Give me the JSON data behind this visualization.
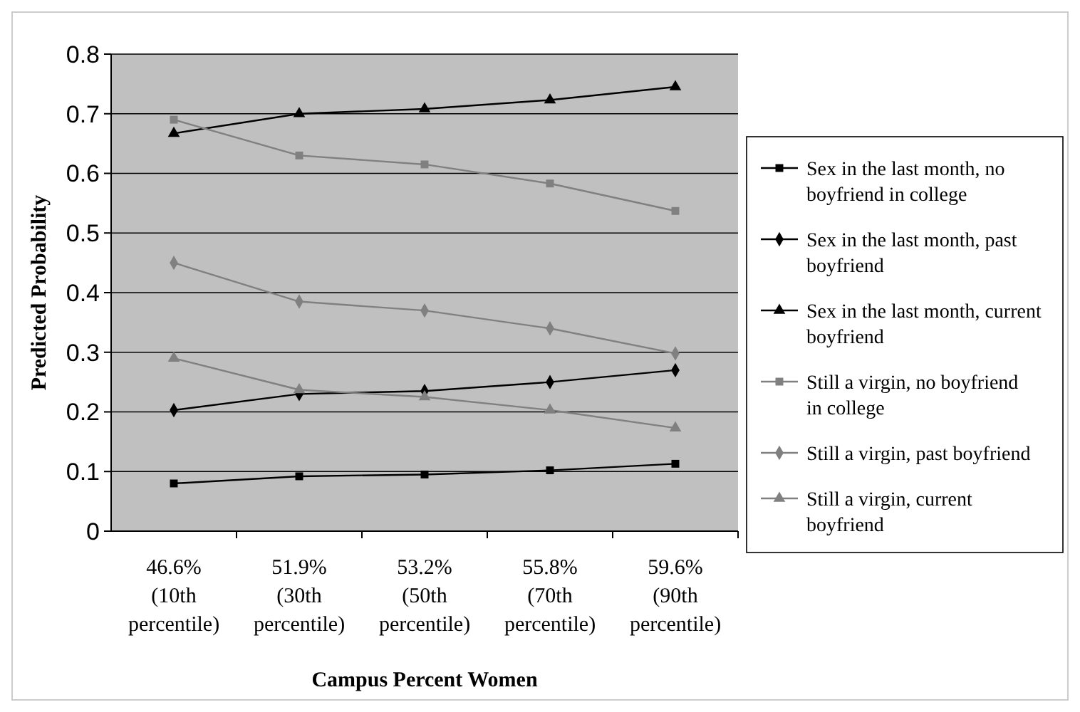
{
  "chart_data": {
    "type": "line",
    "xlabel": "Campus Percent Women",
    "ylabel": "Predicted Probability",
    "categories": [
      "46.6% (10th percentile)",
      "51.9% (30th percentile)",
      "53.2% (50th percentile)",
      "55.8% (70th percentile)",
      "59.6% (90th percentile)"
    ],
    "ylim": [
      0,
      0.8
    ],
    "yticks": [
      {
        "value": 0,
        "label": "0"
      },
      0.1,
      0.2,
      0.3,
      0.4,
      0.5,
      0.6,
      0.7,
      0.8
    ],
    "grid": "y",
    "legend": "right",
    "series": [
      {
        "name": "Sex in the last month, no boyfriend in college",
        "color": "#000000",
        "marker": "square",
        "values": [
          0.08,
          0.092,
          0.095,
          0.102,
          0.113
        ]
      },
      {
        "name": "Sex in the last month, past boyfriend",
        "color": "#000000",
        "marker": "diamond",
        "values": [
          0.203,
          0.23,
          0.235,
          0.25,
          0.27
        ]
      },
      {
        "name": "Sex in the last month, current boyfriend",
        "color": "#000000",
        "marker": "triangle",
        "values": [
          0.667,
          0.7,
          0.708,
          0.723,
          0.745
        ]
      },
      {
        "name": "Still a virgin, no boyfriend in college",
        "color": "#808080",
        "marker": "square",
        "values": [
          0.69,
          0.63,
          0.615,
          0.583,
          0.537
        ]
      },
      {
        "name": "Still a virgin, past boyfriend",
        "color": "#808080",
        "marker": "diamond",
        "values": [
          0.45,
          0.385,
          0.37,
          0.34,
          0.298
        ]
      },
      {
        "name": "Still a virgin, current boyfriend",
        "color": "#808080",
        "marker": "triangle",
        "values": [
          0.29,
          0.237,
          0.225,
          0.203,
          0.173
        ]
      }
    ]
  }
}
